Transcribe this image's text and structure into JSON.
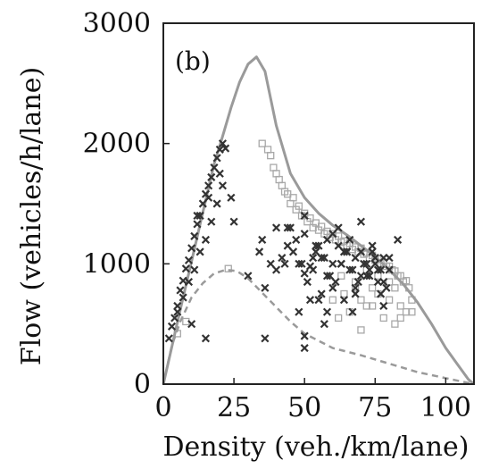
{
  "chart_data": {
    "type": "scatter",
    "panel_label": "(b)",
    "xlabel": "Density (veh./km/lane)",
    "ylabel": "Flow (vehicles/h/lane)",
    "xlim": [
      0,
      110
    ],
    "ylim": [
      0,
      3000
    ],
    "xticks": [
      "0",
      "25",
      "50",
      "75",
      "100"
    ],
    "yticks": [
      "0",
      "1000",
      "2000",
      "3000"
    ],
    "grid": false,
    "legend": "none",
    "colors": {
      "upper_envelope": "#9a9a9a",
      "lower_envelope": "#9a9a9a",
      "cross_markers": "#333333",
      "square_markers": "#a8a8a8",
      "axes": "#222222"
    },
    "series": [
      {
        "id": "upper-envelope",
        "style": "solid-line",
        "x": [
          0,
          3,
          6,
          10,
          14,
          18,
          21,
          24,
          27,
          30,
          33,
          36,
          40,
          45,
          50,
          55,
          60,
          65,
          70,
          75,
          80,
          85,
          90,
          95,
          100,
          104,
          108,
          110
        ],
        "y": [
          0,
          310,
          620,
          1020,
          1430,
          1830,
          2060,
          2300,
          2510,
          2660,
          2720,
          2600,
          2150,
          1750,
          1550,
          1420,
          1320,
          1240,
          1150,
          1060,
          950,
          830,
          680,
          500,
          300,
          170,
          40,
          0
        ]
      },
      {
        "id": "lower-envelope",
        "style": "dashed-line",
        "x": [
          0,
          3,
          6,
          10,
          14,
          18,
          22,
          26,
          30,
          35,
          40,
          45,
          50,
          60,
          70,
          80,
          90,
          100,
          110
        ],
        "y": [
          0,
          320,
          520,
          720,
          840,
          920,
          950,
          940,
          880,
          760,
          640,
          520,
          420,
          300,
          240,
          170,
          100,
          50,
          0
        ]
      },
      {
        "id": "crosses",
        "style": "x-marker",
        "x": [
          2,
          3,
          4,
          5,
          6,
          7,
          8,
          9,
          10,
          11,
          12,
          13,
          14,
          15,
          16,
          17,
          18,
          19,
          20,
          21,
          22,
          5,
          7,
          9,
          11,
          13,
          15,
          17,
          19,
          21,
          10,
          12,
          16,
          20,
          24,
          15,
          25,
          30,
          34,
          36,
          38,
          40,
          42,
          44,
          46,
          48,
          50,
          52,
          54,
          56,
          58,
          60,
          62,
          64,
          66,
          68,
          70,
          72,
          74,
          76,
          78,
          80,
          45,
          47,
          49,
          51,
          53,
          55,
          57,
          59,
          61,
          63,
          65,
          67,
          69,
          71,
          73,
          75,
          77,
          79,
          50,
          54,
          58,
          62,
          66,
          70,
          74,
          78,
          52,
          56,
          60,
          64,
          68,
          72,
          76,
          80,
          48,
          58,
          68,
          78,
          40,
          50,
          60,
          70,
          35,
          43,
          53,
          63,
          73,
          83,
          55,
          65,
          75,
          44,
          50,
          57,
          67,
          77,
          36,
          50
        ],
        "y": [
          380,
          480,
          550,
          650,
          780,
          860,
          960,
          1030,
          1130,
          1230,
          1330,
          1400,
          1500,
          1580,
          1650,
          1720,
          1800,
          1880,
          1950,
          2000,
          1960,
          600,
          720,
          850,
          950,
          1100,
          1200,
          1350,
          1500,
          1650,
          500,
          1400,
          1550,
          1750,
          1550,
          380,
          1350,
          900,
          1100,
          800,
          1000,
          950,
          1050,
          1150,
          1100,
          1000,
          920,
          980,
          1100,
          1050,
          900,
          1000,
          1150,
          1100,
          950,
          1050,
          900,
          1000,
          1100,
          950,
          850,
          1050,
          1300,
          1200,
          1000,
          850,
          950,
          1150,
          1050,
          900,
          850,
          1000,
          1100,
          950,
          850,
          1000,
          900,
          1050,
          950,
          800,
          1250,
          1150,
          1200,
          1300,
          1200,
          1100,
          1150,
          1050,
          700,
          750,
          800,
          700,
          800,
          900,
          850,
          950,
          600,
          600,
          750,
          650,
          1300,
          1400,
          1250,
          1350,
          1200,
          1000,
          1050,
          1000,
          950,
          1200,
          700,
          1100,
          1000,
          1300,
          300,
          500,
          600,
          750,
          380,
          400
        ]
      },
      {
        "id": "squares",
        "style": "square-marker",
        "x": [
          35,
          37,
          39,
          41,
          43,
          45,
          47,
          49,
          51,
          53,
          55,
          57,
          59,
          61,
          63,
          65,
          67,
          69,
          71,
          73,
          75,
          77,
          79,
          81,
          83,
          85,
          87,
          38,
          42,
          46,
          50,
          54,
          58,
          62,
          66,
          70,
          74,
          78,
          82,
          86,
          40,
          44,
          48,
          52,
          56,
          60,
          64,
          68,
          72,
          76,
          80,
          84,
          88,
          60,
          64,
          68,
          72,
          76,
          80,
          84,
          88,
          62,
          66,
          70,
          74,
          78,
          82,
          86,
          23,
          5,
          8,
          63,
          68,
          72,
          74,
          76,
          80,
          82,
          70,
          84
        ],
        "y": [
          2000,
          1950,
          1800,
          1700,
          1600,
          1500,
          1450,
          1400,
          1350,
          1300,
          1280,
          1250,
          1220,
          1200,
          1180,
          1150,
          1120,
          1100,
          1080,
          1050,
          1030,
          1000,
          980,
          950,
          900,
          850,
          800,
          1900,
          1650,
          1550,
          1420,
          1340,
          1270,
          1230,
          1170,
          1130,
          1070,
          1010,
          940,
          860,
          1750,
          1580,
          1480,
          1380,
          1310,
          1250,
          1190,
          1140,
          1090,
          1040,
          980,
          900,
          700,
          700,
          750,
          800,
          650,
          750,
          700,
          650,
          600,
          550,
          600,
          700,
          650,
          550,
          500,
          600,
          960,
          420,
          520,
          900,
          850,
          950,
          800,
          900,
          850,
          800,
          450,
          550
        ]
      }
    ]
  }
}
